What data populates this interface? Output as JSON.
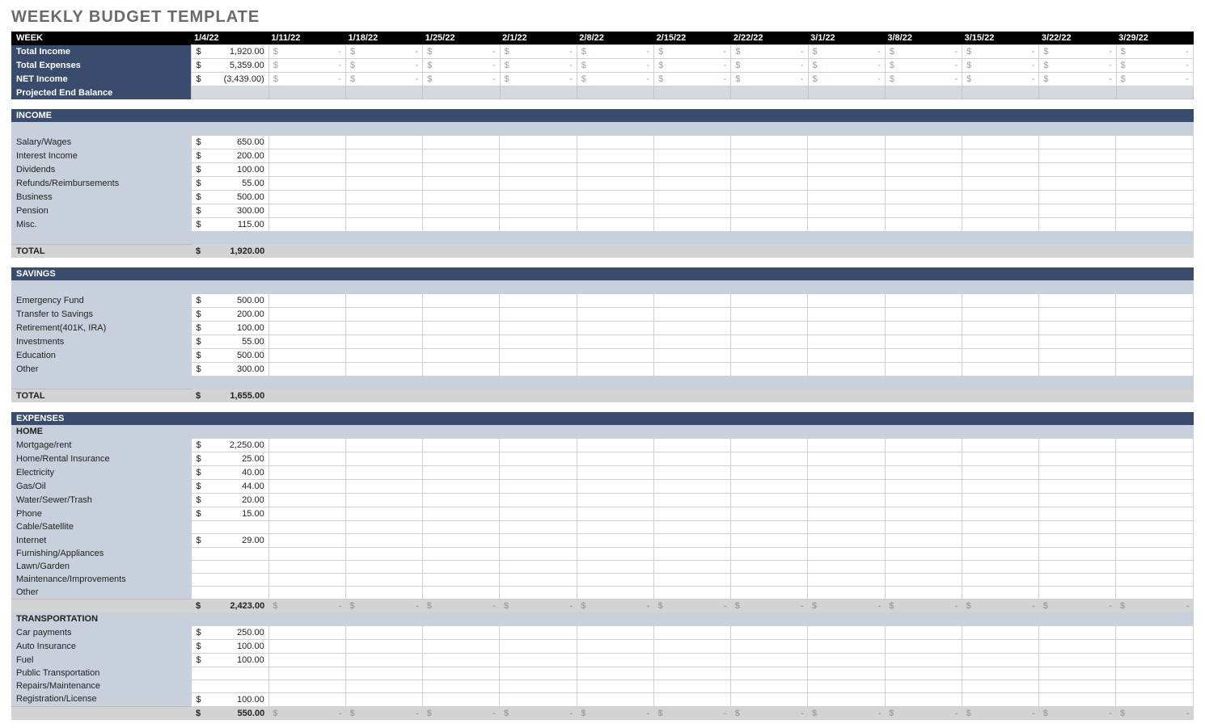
{
  "title": "WEEKLY BUDGET TEMPLATE",
  "currency": "$",
  "dash": "-",
  "weeks": [
    "1/4/22",
    "1/11/22",
    "1/18/22",
    "1/25/22",
    "2/1/22",
    "2/8/22",
    "2/15/22",
    "2/22/22",
    "3/1/22",
    "3/8/22",
    "3/15/22",
    "3/22/22",
    "3/29/22"
  ],
  "summary": {
    "week_label": "WEEK",
    "rows": [
      {
        "label": "Total Income",
        "vals": [
          "1,920.00",
          "",
          "",
          "",
          "",
          "",
          "",
          "",
          "",
          "",
          "",
          "",
          ""
        ],
        "dash_empty": true
      },
      {
        "label": "Total Expenses",
        "vals": [
          "5,359.00",
          "",
          "",
          "",
          "",
          "",
          "",
          "",
          "",
          "",
          "",
          "",
          ""
        ],
        "dash_empty": true
      },
      {
        "label": "NET Income",
        "vals": [
          "(3,439.00)",
          "",
          "",
          "",
          "",
          "",
          "",
          "",
          "",
          "",
          "",
          "",
          ""
        ],
        "dash_empty": true
      },
      {
        "label": "Projected End Balance",
        "vals": [
          "",
          "",
          "",
          "",
          "",
          "",
          "",
          "",
          "",
          "",
          "",
          "",
          ""
        ],
        "dash_empty": false,
        "grey": true
      }
    ]
  },
  "sections": [
    {
      "name": "INCOME",
      "rows": [
        {
          "label": "Salary/Wages",
          "vals": [
            "650.00"
          ]
        },
        {
          "label": "Interest Income",
          "vals": [
            "200.00"
          ]
        },
        {
          "label": "Dividends",
          "vals": [
            "100.00"
          ]
        },
        {
          "label": "Refunds/Reimbursements",
          "vals": [
            "55.00"
          ]
        },
        {
          "label": "Business",
          "vals": [
            "500.00"
          ]
        },
        {
          "label": "Pension",
          "vals": [
            "300.00"
          ]
        },
        {
          "label": "Misc.",
          "vals": [
            "115.00"
          ]
        }
      ],
      "gap_before_total": true,
      "total": {
        "label": "TOTAL",
        "vals": [
          "1,920.00"
        ]
      }
    },
    {
      "name": "SAVINGS",
      "rows": [
        {
          "label": "Emergency Fund",
          "vals": [
            "500.00"
          ]
        },
        {
          "label": "Transfer to Savings",
          "vals": [
            "200.00"
          ]
        },
        {
          "label": "Retirement(401K, IRA)",
          "vals": [
            "100.00"
          ]
        },
        {
          "label": "Investments",
          "vals": [
            "55.00"
          ]
        },
        {
          "label": "Education",
          "vals": [
            "500.00"
          ]
        },
        {
          "label": "Other",
          "vals": [
            "300.00"
          ]
        }
      ],
      "gap_before_total": true,
      "total": {
        "label": "TOTAL",
        "vals": [
          "1,655.00"
        ]
      }
    },
    {
      "name": "EXPENSES",
      "subsections": [
        {
          "name": "HOME",
          "rows": [
            {
              "label": "Mortgage/rent",
              "vals": [
                "2,250.00"
              ]
            },
            {
              "label": "Home/Rental Insurance",
              "vals": [
                "25.00"
              ]
            },
            {
              "label": "Electricity",
              "vals": [
                "40.00"
              ]
            },
            {
              "label": "Gas/Oil",
              "vals": [
                "44.00"
              ]
            },
            {
              "label": "Water/Sewer/Trash",
              "vals": [
                "20.00"
              ]
            },
            {
              "label": "Phone",
              "vals": [
                "15.00"
              ]
            },
            {
              "label": "Cable/Satellite",
              "vals": [
                ""
              ]
            },
            {
              "label": "Internet",
              "vals": [
                "29.00"
              ]
            },
            {
              "label": "Furnishing/Appliances",
              "vals": [
                ""
              ]
            },
            {
              "label": "Lawn/Garden",
              "vals": [
                ""
              ]
            },
            {
              "label": "Maintenance/Improvements",
              "vals": [
                ""
              ]
            },
            {
              "label": "Other",
              "vals": [
                ""
              ]
            }
          ],
          "subtotal": {
            "vals": [
              "2,423.00"
            ],
            "dash_rest": true
          }
        },
        {
          "name": "TRANSPORTATION",
          "rows": [
            {
              "label": "Car payments",
              "vals": [
                "250.00"
              ]
            },
            {
              "label": "Auto Insurance",
              "vals": [
                "100.00"
              ]
            },
            {
              "label": "Fuel",
              "vals": [
                "100.00"
              ]
            },
            {
              "label": "Public Transportation",
              "vals": [
                ""
              ]
            },
            {
              "label": "Repairs/Maintenance",
              "vals": [
                ""
              ]
            },
            {
              "label": "Registration/License",
              "vals": [
                "100.00"
              ]
            }
          ],
          "subtotal": {
            "vals": [
              "550.00"
            ],
            "dash_rest": true
          }
        }
      ]
    }
  ],
  "colors": {
    "label_bg": "#c8d0dc",
    "navy": "#3a4c6d",
    "subtotal_bg": "#d3d3d3",
    "cell_border": "#d0d0d0",
    "title_color": "#6a6a6a"
  }
}
